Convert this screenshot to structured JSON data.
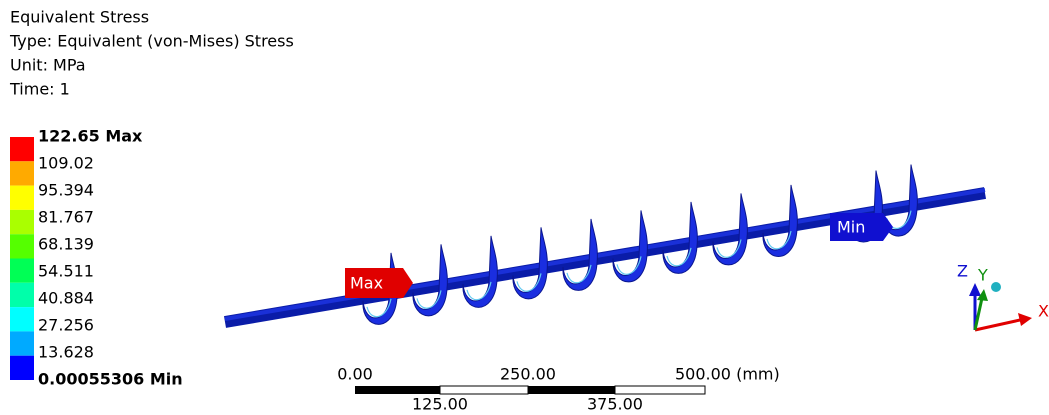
{
  "header": {
    "title": "Equivalent Stress",
    "type": "Type: Equivalent (von-Mises) Stress",
    "unit": "Unit: MPa",
    "time": "Time: 1"
  },
  "legend": {
    "labels": [
      "122.65 Max",
      "109.02",
      "95.394",
      "81.767",
      "68.139",
      "54.511",
      "40.884",
      "27.256",
      "13.628",
      "0.00055306 Min"
    ],
    "colors": [
      "#ff0000",
      "#ffaa00",
      "#ffff00",
      "#aaff00",
      "#55ff00",
      "#00ff55",
      "#00ffaa",
      "#00ffff",
      "#00aaff",
      "#0000ff"
    ]
  },
  "probes": {
    "max": "Max",
    "min": "Min"
  },
  "scale": {
    "top": [
      "0.00",
      "250.00",
      "500.00 (mm)"
    ],
    "bottom": [
      "125.00",
      "375.00"
    ]
  },
  "triad": {
    "x": "X",
    "y": "Y",
    "z": "Z"
  }
}
